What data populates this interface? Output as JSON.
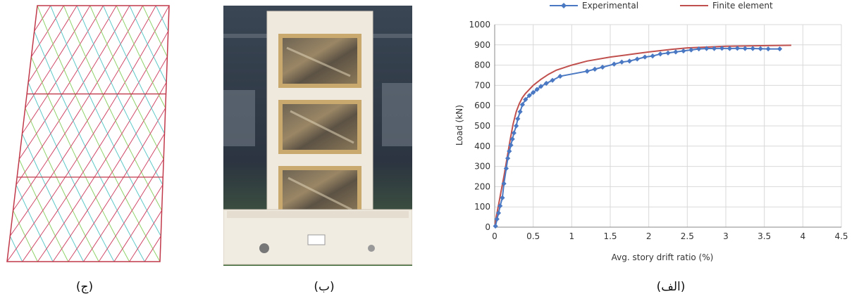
{
  "captions": {
    "mesh": "(ج)",
    "photo": "(ب)",
    "chart": "(الف)"
  },
  "colors": {
    "experimental": "#4a78c2",
    "finite_element": "#c0504d",
    "mesh_frame": "#c0394a",
    "mesh_diag_a": "#5fc8c8",
    "mesh_diag_b": "#8fd16a"
  },
  "chart_data": {
    "type": "line",
    "xlabel": "Avg. story drift ratio (%)",
    "ylabel": "Load (kN)",
    "xlim": [
      0,
      4.5
    ],
    "ylim": [
      0,
      1000
    ],
    "xticks": [
      "0",
      "0.5",
      "1",
      "1.5",
      "2",
      "2.5",
      "3",
      "3.5",
      "4",
      "4.5"
    ],
    "yticks": [
      "0",
      "100",
      "200",
      "300",
      "400",
      "500",
      "600",
      "700",
      "800",
      "900",
      "1000"
    ],
    "grid": true,
    "legend_position": "top",
    "series": [
      {
        "name": "Experimental",
        "marker": "diamond",
        "x": [
          0.01,
          0.03,
          0.05,
          0.07,
          0.1,
          0.12,
          0.15,
          0.17,
          0.19,
          0.21,
          0.23,
          0.25,
          0.28,
          0.3,
          0.33,
          0.36,
          0.4,
          0.45,
          0.5,
          0.55,
          0.6,
          0.67,
          0.75,
          0.85,
          1.2,
          1.3,
          1.4,
          1.55,
          1.65,
          1.75,
          1.85,
          1.95,
          2.05,
          2.15,
          2.25,
          2.35,
          2.45,
          2.55,
          2.65,
          2.75,
          2.85,
          2.95,
          3.05,
          3.15,
          3.25,
          3.35,
          3.45,
          3.55,
          3.7
        ],
        "y": [
          5,
          40,
          70,
          105,
          145,
          215,
          290,
          340,
          375,
          405,
          435,
          465,
          500,
          535,
          570,
          605,
          630,
          650,
          665,
          680,
          695,
          710,
          725,
          745,
          770,
          780,
          790,
          805,
          815,
          820,
          830,
          840,
          845,
          855,
          860,
          865,
          870,
          875,
          880,
          882,
          882,
          883,
          882,
          883,
          882,
          882,
          881,
          880,
          880
        ]
      },
      {
        "name": "Finite element",
        "marker": "none",
        "x": [
          0,
          0.02,
          0.05,
          0.08,
          0.12,
          0.16,
          0.2,
          0.24,
          0.28,
          0.32,
          0.36,
          0.4,
          0.5,
          0.6,
          0.7,
          0.8,
          1.0,
          1.2,
          1.5,
          1.8,
          2.0,
          2.3,
          2.5,
          2.8,
          3.0,
          3.3,
          3.6,
          3.85
        ],
        "y": [
          0,
          50,
          110,
          170,
          250,
          340,
          430,
          510,
          570,
          610,
          640,
          660,
          700,
          730,
          755,
          775,
          800,
          820,
          840,
          855,
          865,
          878,
          885,
          890,
          893,
          895,
          897,
          898
        ]
      }
    ]
  }
}
